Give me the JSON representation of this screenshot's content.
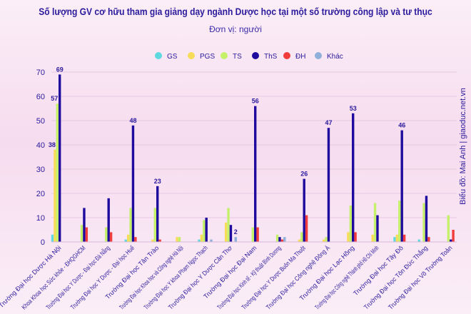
{
  "title": "Số lượng GV cơ hữu tham gia giảng dạy ngành Dược học tại một số trường công lập và tư thục",
  "subtitle": "Đơn vị: người",
  "credit": "Biểu đồ: Mai Anh | giaoduc.net.vn",
  "chart_data": {
    "type": "bar",
    "title": "Số lượng GV cơ hữu tham gia giảng dạy ngành Dược học tại một số trường công lập và tư thục",
    "ylim": [
      0,
      70
    ],
    "yticks": [
      0,
      10,
      20,
      30,
      40,
      50,
      60,
      70
    ],
    "grid": true,
    "legend": "top",
    "categories": [
      "Trường Đại học Dược Hà Nội",
      "Khoa Khoa học Sức khỏe - ĐHQGHCM",
      "Trường Đại học Y Dược - Đại học Đà Nẵng",
      "Trường Đại học Y Dược - Đại học Huế",
      "Trường Đại học Tân Trào",
      "Trường Đại học Khoa học và Công nghệ Hà Nội",
      "Trường Đại học Y khoa Phạm Ngọc Thạch",
      "Trường Đại học Y Dược Cần Thơ",
      "Trường Đại học Đại Nam",
      "Trường Đại học Kinh tế - Kỹ thuật Bình Dương",
      "Trường Đại học Y Dược Buôn Ma Thuột",
      "Trường Đại học Công nghệ Đông Á",
      "Trường Đại học Lạc Hồng",
      "Trường Đại học Công nghệ Thành phố Hồ Chí Minh",
      "Trường Đại học Tây Đô",
      "Trường Đại học Tôn Đức Thắng",
      "Trường Đại học Võ Trường Toản"
    ],
    "series": [
      {
        "name": "GS",
        "color": "#5fd8e0",
        "values": [
          3,
          0,
          0,
          1,
          0,
          0,
          1,
          0,
          0,
          0,
          0,
          0,
          0,
          0,
          2,
          1,
          0
        ]
      },
      {
        "name": "PGS",
        "color": "#f7dc5a",
        "values": [
          38,
          0,
          0,
          3,
          1,
          2,
          3,
          8,
          0,
          0,
          1,
          1,
          4,
          3,
          3,
          0,
          0
        ]
      },
      {
        "name": "TS",
        "color": "#c4f06a",
        "values": [
          57,
          7,
          6,
          14,
          14,
          2,
          9,
          14,
          6,
          3,
          4,
          2,
          15,
          16,
          17,
          16,
          11
        ]
      },
      {
        "name": "ThS",
        "color": "#1f0a9e",
        "values": [
          69,
          14,
          18,
          48,
          23,
          0,
          10,
          7,
          56,
          2,
          26,
          47,
          53,
          11,
          46,
          19,
          1
        ]
      },
      {
        "name": "ĐH",
        "color": "#f03c3c",
        "values": [
          0,
          6,
          4,
          2,
          1,
          0,
          0,
          0,
          6,
          1,
          11,
          0,
          4,
          0,
          3,
          2,
          5
        ]
      },
      {
        "name": "Khác",
        "color": "#8fb0d8",
        "values": [
          0,
          0,
          0,
          0,
          0,
          0,
          1,
          2,
          0,
          2,
          0,
          0,
          0,
          0,
          0,
          0,
          0
        ]
      }
    ],
    "data_labels": [
      {
        "category": 0,
        "series": "PGS",
        "text": "38"
      },
      {
        "category": 0,
        "series": "TS",
        "text": "57"
      },
      {
        "category": 0,
        "series": "ThS",
        "text": "69"
      },
      {
        "category": 3,
        "series": "ThS",
        "text": "48"
      },
      {
        "category": 4,
        "series": "ThS",
        "text": "23"
      },
      {
        "category": 7,
        "series": "Khác",
        "text": "2"
      },
      {
        "category": 8,
        "series": "ThS",
        "text": "56"
      },
      {
        "category": 10,
        "series": "ThS",
        "text": "26"
      },
      {
        "category": 11,
        "series": "ThS",
        "text": "47"
      },
      {
        "category": 12,
        "series": "ThS",
        "text": "53"
      },
      {
        "category": 14,
        "series": "ThS",
        "text": "46"
      }
    ]
  }
}
